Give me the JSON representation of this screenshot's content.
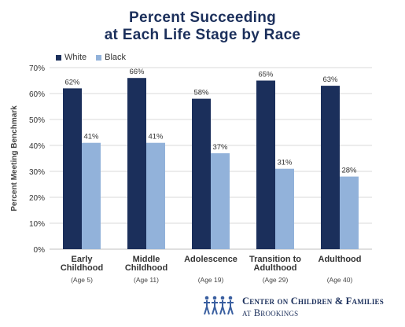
{
  "title_line1": "Percent Succeeding",
  "title_line2": "at Each Life Stage by Race",
  "colors": {
    "white": "#1b2f5b",
    "black": "#92b2da",
    "title": "#1b2f5b",
    "grid": "#d9d9d9"
  },
  "chart_data": {
    "type": "bar",
    "title": "Percent Succeeding at Each Life Stage by Race",
    "ylabel": "Percent Meeting Benchmark",
    "ylim": [
      0,
      70
    ],
    "yticks": [
      "0%",
      "10%",
      "20%",
      "30%",
      "40%",
      "50%",
      "60%",
      "70%"
    ],
    "grid": true,
    "legend_position": "top-left",
    "categories": [
      {
        "label_lines": [
          "Early",
          "Childhood"
        ],
        "sub": "(Age 5)"
      },
      {
        "label_lines": [
          "Middle",
          "Childhood"
        ],
        "sub": "(Age 11)"
      },
      {
        "label_lines": [
          "Adolescence"
        ],
        "sub": "(Age 19)"
      },
      {
        "label_lines": [
          "Transition to",
          "Adulthood"
        ],
        "sub": "(Age 29)"
      },
      {
        "label_lines": [
          "Adulthood"
        ],
        "sub": "(Age 40)"
      }
    ],
    "series": [
      {
        "name": "White",
        "color": "#1b2f5b",
        "values": [
          62,
          66,
          58,
          65,
          63
        ],
        "labels": [
          "62%",
          "66%",
          "58%",
          "65%",
          "63%"
        ]
      },
      {
        "name": "Black",
        "color": "#92b2da",
        "values": [
          41,
          41,
          37,
          31,
          28
        ],
        "labels": [
          "41%",
          "41%",
          "37%",
          "31%",
          "28%"
        ]
      }
    ]
  },
  "footer": {
    "line1": "Center on Children & Families",
    "line2": "at Brookings",
    "logo_icon": "people-figures-icon"
  }
}
